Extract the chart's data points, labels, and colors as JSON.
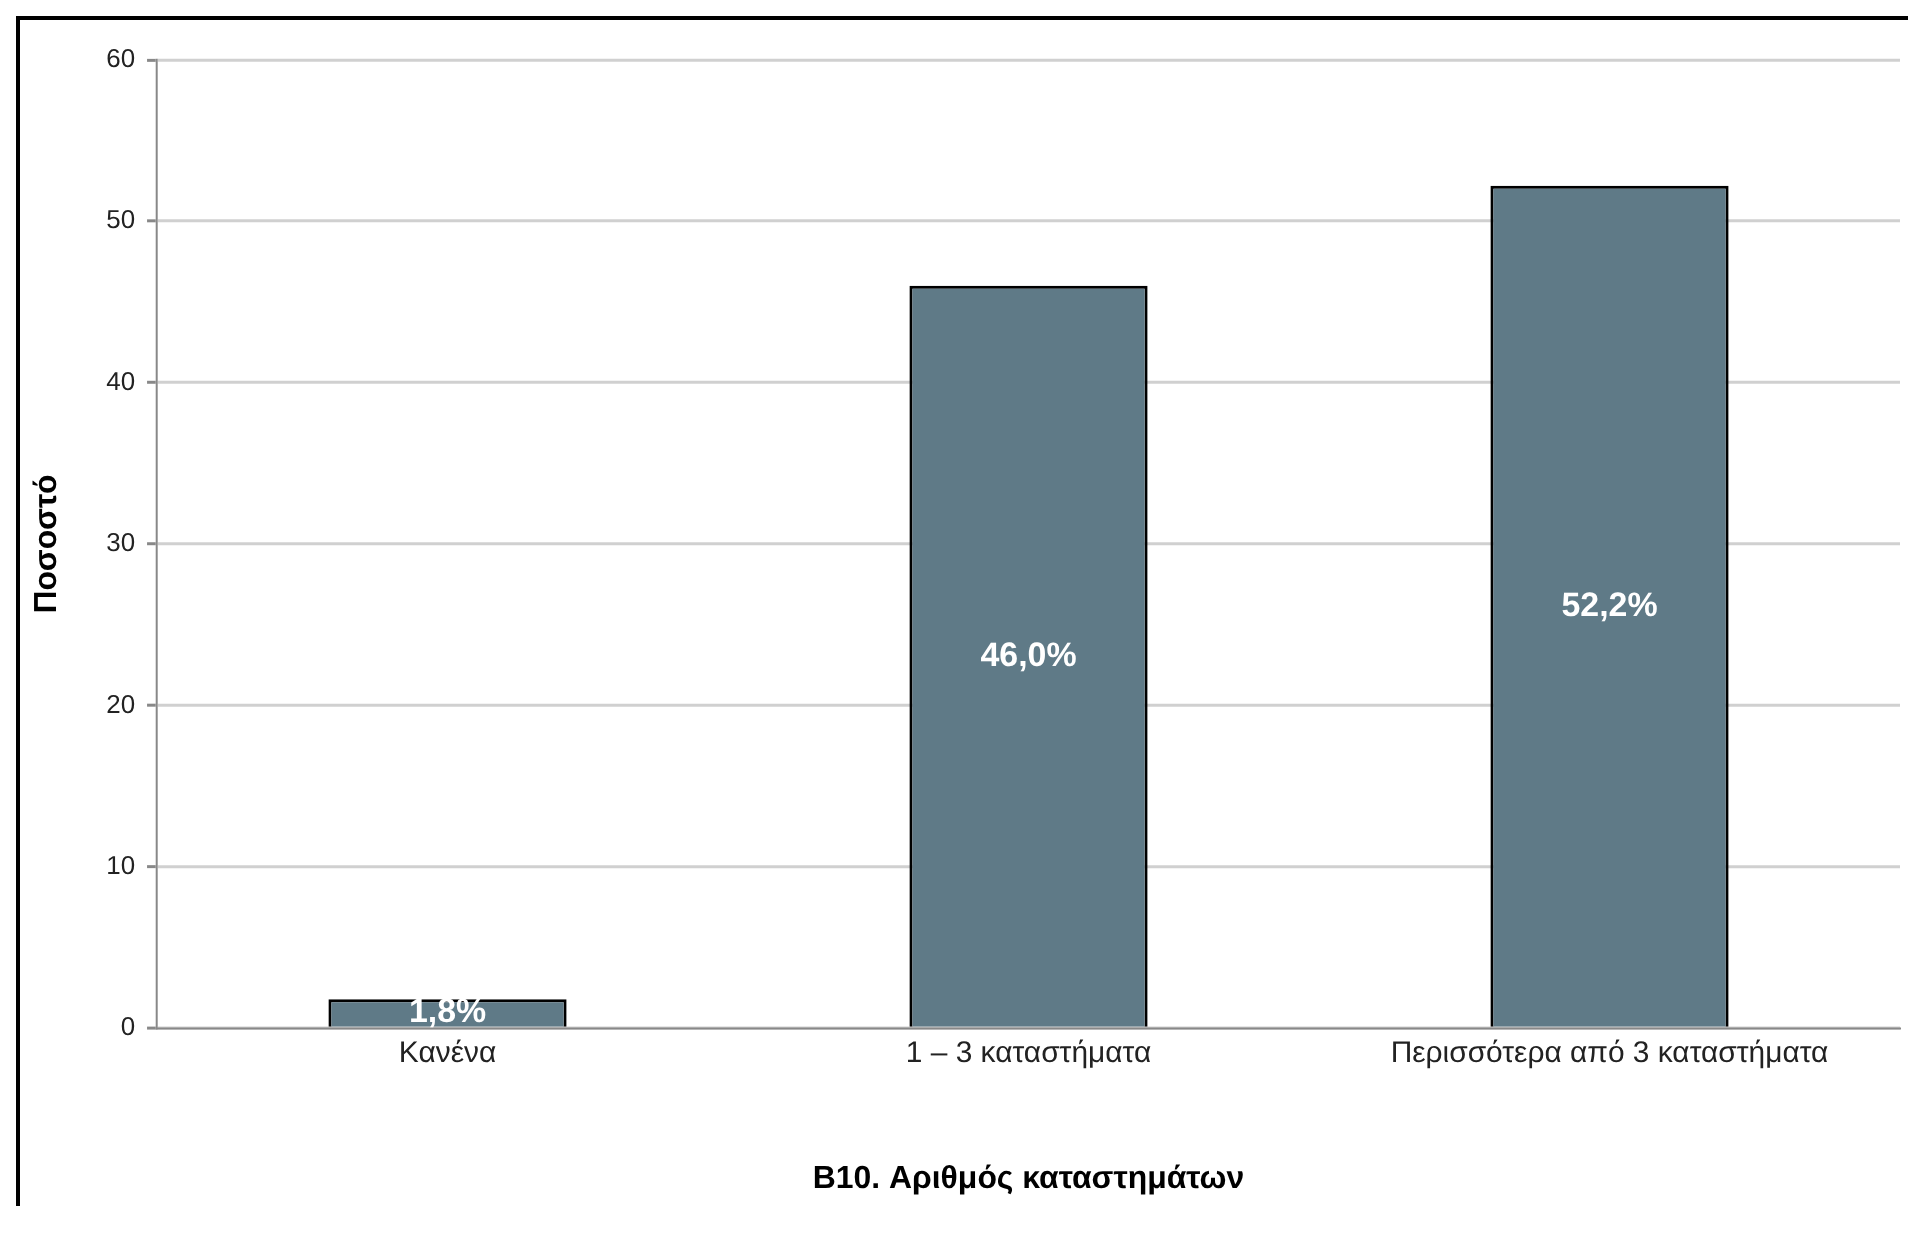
{
  "chart_data": {
    "type": "bar",
    "xlabel": "B10. Αριθμός καταστημάτων",
    "ylabel": "Ποσοστό",
    "categories": [
      "Κανένα",
      "1 – 3 καταστήματα",
      "Περισσότερα από 3 καταστήματα"
    ],
    "values": [
      1.8,
      46.0,
      52.2
    ],
    "color": "#5f7a87",
    "value_labels": [
      "1,8%",
      "46,0%",
      "52,2%"
    ],
    "ylim": [
      0,
      60
    ],
    "yticks": [
      0,
      10,
      20,
      30,
      40,
      50,
      60
    ],
    "grid": "y",
    "legend": false
  }
}
